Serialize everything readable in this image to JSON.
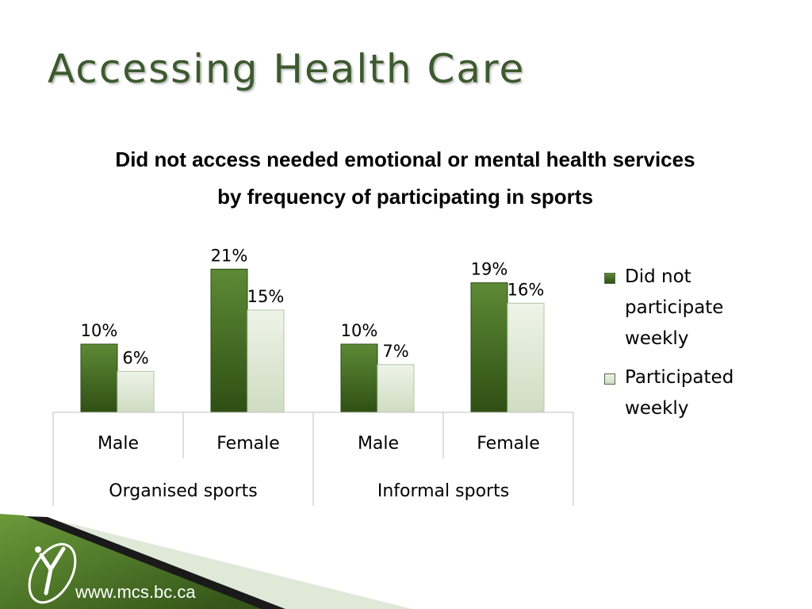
{
  "slide": {
    "title": "Accessing Health Care",
    "website": "www.mcs.bc.ca"
  },
  "colors": {
    "title": "#3d5a2f",
    "did_not_participate": "#3f6a1e",
    "participated": "#e2ecd8",
    "footer_green": "#4f7a2a"
  },
  "icons": {
    "logo": "mcs-y-logo"
  },
  "chart_data": {
    "type": "bar",
    "title": "Did not access needed emotional or mental health services by frequency of participating in sports",
    "categories": [
      "Male",
      "Female",
      "Male",
      "Female"
    ],
    "groups": [
      {
        "label": "Organised sports",
        "categories": [
          "Male",
          "Female"
        ]
      },
      {
        "label": "Informal sports",
        "categories": [
          "Male",
          "Female"
        ]
      }
    ],
    "series": [
      {
        "name": "Did not participate weekly",
        "values": [
          10,
          21,
          10,
          19
        ],
        "labels": [
          "10%",
          "21%",
          "10%",
          "19%"
        ]
      },
      {
        "name": "Participated weekly",
        "values": [
          6,
          15,
          7,
          16
        ],
        "labels": [
          "6%",
          "15%",
          "7%",
          "16%"
        ]
      }
    ],
    "ylim": [
      0,
      25
    ],
    "unit": "%",
    "legend": "right",
    "grid": false
  }
}
